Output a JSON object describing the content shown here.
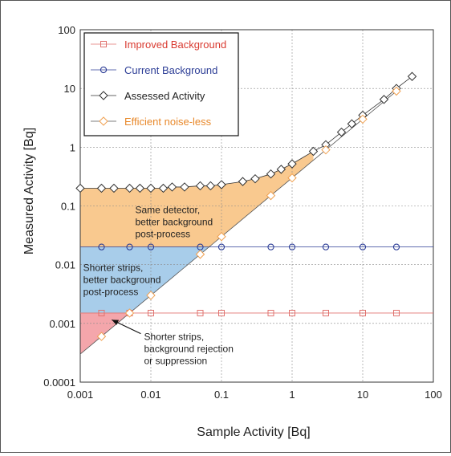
{
  "chart_data": {
    "type": "line",
    "xlabel": "Sample Activity [Bq]",
    "ylabel": "Measured Activity [Bq]",
    "xscale": "log",
    "yscale": "log",
    "xlim": [
      0.001,
      100
    ],
    "ylim": [
      0.0001,
      100
    ],
    "xticks": [
      "0.001",
      "0.01",
      "0.1",
      "1",
      "10",
      "100"
    ],
    "yticks": [
      "0.0001",
      "0.001",
      "0.01",
      "0.1",
      "1",
      "10",
      "100"
    ],
    "grid": true,
    "legend_position": "top-left",
    "series": [
      {
        "name": "Improved Background",
        "color": "#e0736f",
        "marker": "square",
        "points": [
          [
            0.001,
            0.0015
          ],
          [
            0.002,
            0.0015
          ],
          [
            0.005,
            0.0015
          ],
          [
            0.01,
            0.0015
          ],
          [
            0.05,
            0.0015
          ],
          [
            0.1,
            0.0015
          ],
          [
            0.5,
            0.0015
          ],
          [
            1,
            0.0015
          ],
          [
            3,
            0.0015
          ],
          [
            10,
            0.0015
          ],
          [
            30,
            0.0015
          ],
          [
            100,
            0.0015
          ]
        ],
        "marker_x": [
          0.002,
          0.005,
          0.01,
          0.05,
          0.1,
          0.5,
          1,
          3,
          10,
          30
        ]
      },
      {
        "name": "Current Background",
        "color": "#2c3d96",
        "marker": "circle",
        "points": [
          [
            0.001,
            0.02
          ],
          [
            0.002,
            0.02
          ],
          [
            0.005,
            0.02
          ],
          [
            0.01,
            0.02
          ],
          [
            0.05,
            0.02
          ],
          [
            0.1,
            0.02
          ],
          [
            0.5,
            0.02
          ],
          [
            1,
            0.02
          ],
          [
            3,
            0.02
          ],
          [
            10,
            0.02
          ],
          [
            30,
            0.02
          ],
          [
            100,
            0.02
          ]
        ],
        "marker_x": [
          0.002,
          0.005,
          0.01,
          0.05,
          0.1,
          0.5,
          1,
          3,
          10,
          30
        ]
      },
      {
        "name": "Assessed Activity",
        "color": "#333333",
        "marker": "diamond",
        "points": [
          [
            0.001,
            0.2
          ],
          [
            0.002,
            0.2
          ],
          [
            0.003,
            0.2
          ],
          [
            0.005,
            0.2
          ],
          [
            0.007,
            0.2
          ],
          [
            0.01,
            0.2
          ],
          [
            0.015,
            0.2
          ],
          [
            0.02,
            0.21
          ],
          [
            0.03,
            0.21
          ],
          [
            0.05,
            0.22
          ],
          [
            0.07,
            0.22
          ],
          [
            0.1,
            0.23
          ],
          [
            0.2,
            0.26
          ],
          [
            0.3,
            0.29
          ],
          [
            0.5,
            0.35
          ],
          [
            0.7,
            0.42
          ],
          [
            1,
            0.52
          ],
          [
            2,
            0.85
          ],
          [
            3,
            1.1
          ],
          [
            5,
            1.8
          ],
          [
            7,
            2.5
          ],
          [
            10,
            3.5
          ],
          [
            20,
            6.5
          ],
          [
            30,
            10
          ],
          [
            50,
            16
          ]
        ],
        "marker_x": [
          0.001,
          0.002,
          0.003,
          0.005,
          0.007,
          0.01,
          0.015,
          0.02,
          0.03,
          0.05,
          0.07,
          0.1,
          0.2,
          0.3,
          0.5,
          0.7,
          1,
          2,
          3,
          5,
          7,
          10,
          20,
          30,
          50
        ]
      },
      {
        "name": "Efficient noise-less",
        "color": "#f0a050",
        "marker": "diamond",
        "points": [
          [
            0.001,
            0.0003
          ],
          [
            100,
            30
          ]
        ],
        "marker_x": [
          0.002,
          0.005,
          0.01,
          0.05,
          0.1,
          0.5,
          1,
          3,
          10,
          30
        ]
      }
    ],
    "regions": [
      {
        "name": "orange",
        "color": "#f9c98f",
        "from": "blue-top",
        "to": "assessed"
      },
      {
        "name": "blue",
        "color": "#a8cdea",
        "from": "improved",
        "to": "current"
      },
      {
        "name": "red",
        "color": "#f4a6ab",
        "from": "noise-less",
        "to": "improved"
      }
    ],
    "annotations": [
      {
        "lines": [
          "Same detector,",
          "better background",
          "post-process"
        ],
        "x": 0.006,
        "y": 0.075
      },
      {
        "lines": [
          "Shorter strips,",
          "better background",
          "post-process"
        ],
        "x": 0.0011,
        "y": 0.0078
      },
      {
        "lines": [
          "Shorter strips,",
          "background rejection",
          "or suppression"
        ],
        "x": 0.008,
        "y": 0.00052,
        "arrow_to": [
          0.0028,
          0.00115
        ]
      }
    ]
  }
}
